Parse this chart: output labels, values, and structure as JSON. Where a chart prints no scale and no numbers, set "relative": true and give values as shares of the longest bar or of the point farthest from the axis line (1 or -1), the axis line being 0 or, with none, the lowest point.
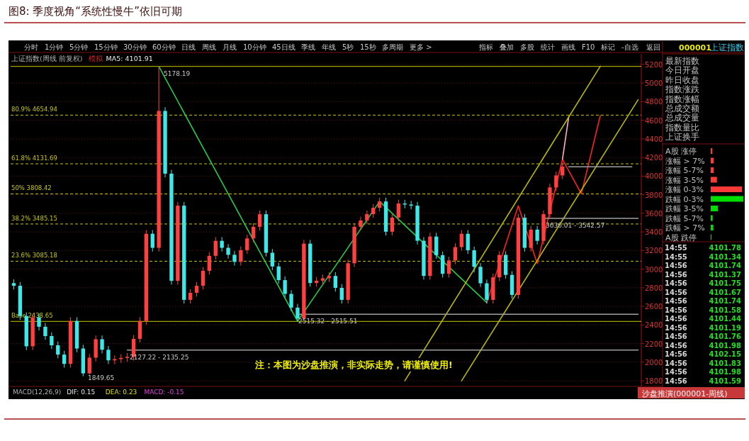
{
  "chart_data": [
    {
      "type": "other",
      "annotations": [
        "分时",
        "1分钟",
        "5分钟",
        "15分钟",
        "30分钟",
        "60分钟",
        "日线",
        "周线",
        "月线",
        "10分钟",
        "45日线",
        "季线",
        "年线",
        "5秒",
        "15秒",
        "多周期",
        "更多 >",
        "指标",
        "叠加",
        "多股",
        "统计",
        "画线",
        "F10",
        "标记",
        "-自选",
        "返回"
      ]
    },
    {
      "type": "candlestick",
      "title": "图8:   季度视角“系统性慢牛”依旧可期",
      "categories": [
        null,
        null,
        null,
        null,
        null,
        null,
        null,
        null,
        null,
        null,
        null,
        null,
        null,
        null,
        null,
        null,
        null,
        null,
        null,
        null,
        null,
        null,
        null,
        null,
        null,
        null,
        null,
        null,
        null,
        null,
        null,
        null,
        null,
        null,
        null,
        null,
        null,
        null,
        null,
        null,
        null,
        null,
        null,
        null,
        null,
        null,
        null,
        null,
        null,
        null,
        null,
        null,
        null,
        null,
        null,
        null,
        null,
        null,
        null,
        null,
        null,
        null,
        null,
        null,
        null,
        null,
        null,
        null,
        null,
        null,
        null,
        null,
        null,
        null,
        null,
        null,
        null,
        null,
        null,
        null,
        null,
        null,
        null,
        null,
        null,
        null,
        null,
        null,
        null,
        null,
        null,
        null,
        null,
        null,
        null,
        null,
        null,
        null,
        null,
        null
      ],
      "ohlc": [
        [
          2850,
          2890,
          2781,
          2821
        ],
        [
          2821,
          2861,
          2456,
          2496
        ],
        [
          2496,
          2536,
          2131,
          2171
        ],
        [
          2171,
          2521,
          2131,
          2481
        ],
        [
          2481,
          2521,
          2341,
          2381
        ],
        [
          2381,
          2421,
          2241,
          2281
        ],
        [
          2281,
          2321,
          2142,
          2182
        ],
        [
          2182,
          2222,
          2042,
          2082
        ],
        [
          2082,
          2122,
          1942,
          1982
        ],
        [
          1982,
          2483,
          1942,
          2443
        ],
        [
          2443,
          2483,
          2107,
          2147
        ],
        [
          2147,
          2187,
          1849.65,
          1880
        ],
        [
          1880,
          2089,
          1870,
          2049
        ],
        [
          2049,
          2287,
          2009,
          2247
        ],
        [
          2247,
          2287,
          2094,
          2134
        ],
        [
          2134,
          2174,
          1980,
          2020
        ],
        [
          2020,
          2073,
          1980,
          2033
        ],
        [
          2033,
          2086,
          1993,
          2046
        ],
        [
          2046,
          2098,
          2006,
          2058
        ],
        [
          2058,
          2291,
          2018,
          2251
        ],
        [
          2251,
          2483,
          2211,
          2443
        ],
        [
          2443,
          3420,
          2403,
          3380
        ],
        [
          3380,
          3420,
          3189,
          3229
        ],
        [
          3229,
          5178.19,
          3189,
          4700
        ],
        [
          4700,
          4740,
          3986,
          4026
        ],
        [
          4026,
          4066,
          2834,
          2874
        ],
        [
          2874,
          3722,
          2834,
          3682
        ],
        [
          3682,
          3722,
          2630,
          2670
        ],
        [
          2670,
          2786,
          2630,
          2746
        ],
        [
          2746,
          2861,
          2706,
          2821
        ],
        [
          2821,
          3022,
          2781,
          2982
        ],
        [
          2982,
          3183,
          2942,
          3143
        ],
        [
          3143,
          3344,
          3103,
          3304
        ],
        [
          3304,
          3344,
          3189,
          3229
        ],
        [
          3229,
          3269,
          3114,
          3154
        ],
        [
          3154,
          3194,
          3038,
          3078
        ],
        [
          3078,
          3244,
          3038,
          3204
        ],
        [
          3204,
          3370,
          3164,
          3330
        ],
        [
          3330,
          3495,
          3290,
          3455
        ],
        [
          3455,
          3630,
          3415,
          3590
        ],
        [
          3590,
          3630,
          3136,
          3176
        ],
        [
          3176,
          3216,
          2989,
          3029
        ],
        [
          3029,
          3069,
          2842,
          2882
        ],
        [
          2882,
          2922,
          2694,
          2734
        ],
        [
          2734,
          2774,
          2547,
          2587
        ],
        [
          2587,
          2627,
          2440,
          2470
        ],
        [
          2470,
          3314,
          2450,
          3274
        ],
        [
          3274,
          3314,
          2811,
          2851
        ],
        [
          2851,
          2916,
          2811,
          2876
        ],
        [
          2876,
          2942,
          2836,
          2902
        ],
        [
          2902,
          2967,
          2862,
          2927
        ],
        [
          2927,
          2967,
          2759,
          2799
        ],
        [
          2799,
          2839,
          2630,
          2670
        ],
        [
          2670,
          3103,
          2630,
          3063
        ],
        [
          3063,
          3495,
          3023,
          3455
        ],
        [
          3455,
          3563,
          3415,
          3523
        ],
        [
          3523,
          3631,
          3483,
          3591
        ],
        [
          3591,
          3699,
          3551,
          3659
        ],
        [
          3659,
          3767,
          3619,
          3727
        ],
        [
          3727,
          3767,
          3362,
          3402
        ],
        [
          3402,
          3594,
          3362,
          3554
        ],
        [
          3554,
          3745,
          3514,
          3705
        ],
        [
          3705,
          3745,
          3654,
          3694
        ],
        [
          3694,
          3734,
          3642,
          3682
        ],
        [
          3682,
          3722,
          3265,
          3305
        ],
        [
          3305,
          3345,
          2887,
          2927
        ],
        [
          2927,
          3390,
          2887,
          3350
        ],
        [
          3350,
          3390,
          3110,
          3150
        ],
        [
          3150,
          3190,
          2910,
          2950
        ],
        [
          2950,
          3133,
          2910,
          3093
        ],
        [
          3093,
          3277,
          3053,
          3237
        ],
        [
          3237,
          3420,
          3197,
          3380
        ],
        [
          3380,
          3420,
          3163,
          3203
        ],
        [
          3203,
          3243,
          2965,
          3025
        ],
        [
          3025,
          3065,
          2808,
          2848
        ],
        [
          2848,
          2888,
          2630,
          2670
        ],
        [
          2670,
          2952,
          2630,
          2912
        ],
        [
          2912,
          3193,
          2872,
          3153
        ],
        [
          3153,
          3193,
          2898,
          2938
        ],
        [
          2938,
          2978,
          2683,
          2723
        ],
        [
          2723,
          3593,
          2683,
          3553
        ],
        [
          3553,
          3593,
          3189,
          3229
        ],
        [
          3229,
          3465,
          3189,
          3425
        ],
        [
          3425,
          3465,
          3264,
          3304
        ],
        [
          3304,
          3631,
          3264,
          3591
        ],
        [
          3591,
          3918,
          3551,
          3878
        ],
        [
          3878,
          4047,
          3838,
          4007
        ],
        [
          4007,
          4142,
          3967,
          4102
        ],
        null,
        null,
        null,
        null,
        null,
        null,
        null,
        null,
        null,
        null,
        null,
        null
      ],
      "series": [
        {
          "type": "line",
          "color": "#22cc44",
          "values": [
            null,
            null,
            null,
            null,
            null,
            null,
            null,
            null,
            null,
            null,
            null,
            null,
            null,
            null,
            null,
            null,
            null,
            null,
            null,
            null,
            null,
            null,
            null,
            5178,
            null,
            null,
            null,
            null,
            null,
            null,
            null,
            null,
            null,
            null,
            null,
            null,
            null,
            null,
            null,
            null,
            null,
            null,
            null,
            null,
            null,
            2440,
            null,
            null,
            null,
            null,
            null,
            null,
            null,
            null,
            null,
            null,
            null,
            null,
            3727,
            null,
            null,
            null,
            null,
            null,
            null,
            null,
            null,
            null,
            null,
            null,
            null,
            null,
            null,
            null,
            null,
            2640,
            null,
            null,
            null,
            null,
            null,
            null,
            null,
            null,
            null,
            null,
            null,
            null,
            null,
            null,
            null,
            null,
            null,
            null,
            null,
            null,
            null,
            null,
            null,
            null
          ]
        },
        {
          "type": "line",
          "color": "#ff2020",
          "values": [
            null,
            null,
            null,
            null,
            null,
            null,
            null,
            null,
            null,
            null,
            null,
            null,
            null,
            null,
            null,
            null,
            null,
            null,
            null,
            null,
            null,
            null,
            null,
            null,
            null,
            null,
            null,
            null,
            null,
            null,
            null,
            null,
            null,
            null,
            null,
            null,
            null,
            null,
            null,
            null,
            null,
            null,
            null,
            null,
            null,
            null,
            null,
            null,
            null,
            null,
            null,
            null,
            null,
            null,
            null,
            null,
            null,
            null,
            null,
            null,
            null,
            null,
            null,
            null,
            null,
            null,
            null,
            null,
            null,
            null,
            null,
            null,
            null,
            null,
            null,
            2640,
            null,
            null,
            null,
            null,
            3680,
            null,
            null,
            3060,
            null,
            null,
            null,
            4180,
            null,
            null,
            3810,
            null,
            null,
            4650,
            null,
            null,
            null,
            null,
            null,
            null
          ]
        },
        {
          "type": "line",
          "color": "#ffb0c8",
          "values": [
            null,
            null,
            null,
            null,
            null,
            null,
            null,
            null,
            null,
            null,
            null,
            null,
            null,
            null,
            null,
            null,
            null,
            null,
            null,
            null,
            null,
            null,
            null,
            null,
            null,
            null,
            null,
            null,
            null,
            null,
            null,
            null,
            null,
            null,
            null,
            null,
            null,
            null,
            null,
            null,
            null,
            null,
            null,
            null,
            null,
            null,
            null,
            null,
            null,
            null,
            null,
            null,
            null,
            null,
            null,
            null,
            null,
            null,
            null,
            null,
            null,
            null,
            null,
            null,
            null,
            null,
            null,
            null,
            null,
            null,
            null,
            null,
            null,
            null,
            null,
            null,
            null,
            null,
            null,
            null,
            null,
            null,
            null,
            null,
            null,
            null,
            null,
            4180,
            4640,
            null,
            null,
            null,
            null,
            null,
            null,
            null,
            null,
            null,
            null,
            null
          ]
        },
        {
          "type": "line",
          "color": "#b8b800",
          "values": [
            null,
            null,
            null,
            null,
            null,
            null,
            null,
            null,
            null,
            null,
            null,
            null,
            null,
            null,
            null,
            null,
            null,
            null,
            null,
            null,
            null,
            null,
            null,
            null,
            null,
            null,
            null,
            null,
            null,
            null,
            null,
            null,
            null,
            null,
            null,
            null,
            null,
            null,
            null,
            null,
            null,
            null,
            null,
            null,
            null,
            null,
            null,
            null,
            null,
            null,
            null,
            null,
            null,
            null,
            null,
            null,
            null,
            null,
            null,
            null,
            null,
            null,
            1800,
            null,
            null,
            null,
            null,
            null,
            null,
            null,
            null,
            null,
            null,
            null,
            null,
            null,
            null,
            null,
            null,
            null,
            null,
            null,
            null,
            null,
            null,
            null,
            null,
            null,
            null,
            null,
            null,
            null,
            null,
            5180,
            null,
            null,
            null,
            null,
            null,
            null
          ]
        },
        {
          "type": "line",
          "color": "#b8b800",
          "values": [
            null,
            null,
            null,
            null,
            null,
            null,
            null,
            null,
            null,
            null,
            null,
            null,
            null,
            null,
            null,
            null,
            null,
            null,
            null,
            null,
            null,
            null,
            null,
            null,
            null,
            null,
            null,
            null,
            null,
            null,
            null,
            null,
            null,
            null,
            null,
            null,
            null,
            null,
            null,
            null,
            null,
            null,
            null,
            null,
            null,
            null,
            null,
            null,
            null,
            null,
            null,
            null,
            null,
            null,
            null,
            null,
            null,
            null,
            null,
            null,
            null,
            null,
            null,
            null,
            null,
            null,
            null,
            null,
            null,
            null,
            null,
            1800,
            null,
            null,
            null,
            null,
            null,
            null,
            null,
            null,
            null,
            null,
            null,
            null,
            null,
            null,
            null,
            null,
            null,
            null,
            null,
            null,
            null,
            null,
            null,
            null,
            null,
            null,
            null,
            4820
          ]
        },
        {
          "type": "line",
          "color": "#a0a0a0",
          "values": [
            null,
            null,
            null,
            null,
            null,
            null,
            null,
            null,
            null,
            null,
            null,
            null,
            null,
            null,
            null,
            null,
            null,
            null,
            2130,
            null,
            null,
            null,
            null,
            null,
            null,
            null,
            null,
            null,
            null,
            null,
            null,
            null,
            null,
            null,
            null,
            null,
            null,
            null,
            null,
            null,
            null,
            null,
            null,
            null,
            null,
            null,
            null,
            null,
            null,
            null,
            null,
            null,
            null,
            null,
            null,
            null,
            null,
            null,
            null,
            null,
            null,
            null,
            null,
            null,
            null,
            null,
            null,
            null,
            null,
            null,
            null,
            null,
            null,
            null,
            null,
            null,
            null,
            null,
            null,
            null,
            null,
            null,
            null,
            null,
            null,
            null,
            null,
            null,
            null,
            null,
            null,
            null,
            null,
            null,
            null,
            null,
            null,
            null,
            null,
            2130
          ]
        },
        {
          "type": "line",
          "color": "#a0a0a0",
          "values": [
            null,
            null,
            null,
            null,
            null,
            null,
            null,
            null,
            null,
            null,
            null,
            null,
            null,
            null,
            null,
            null,
            null,
            null,
            null,
            null,
            null,
            null,
            null,
            null,
            null,
            null,
            null,
            null,
            null,
            null,
            null,
            null,
            null,
            null,
            null,
            null,
            null,
            null,
            null,
            null,
            null,
            null,
            null,
            null,
            null,
            2515,
            null,
            null,
            null,
            null,
            null,
            null,
            null,
            null,
            null,
            null,
            null,
            null,
            null,
            null,
            null,
            null,
            null,
            null,
            null,
            null,
            null,
            null,
            null,
            null,
            null,
            null,
            null,
            null,
            null,
            null,
            null,
            null,
            null,
            null,
            null,
            null,
            null,
            null,
            null,
            null,
            null,
            null,
            null,
            null,
            null,
            null,
            null,
            null,
            null,
            null,
            null,
            null,
            null,
            2515
          ]
        },
        {
          "type": "line",
          "color": "#a0a0a0",
          "values": [
            null,
            null,
            null,
            null,
            null,
            null,
            null,
            null,
            null,
            null,
            null,
            null,
            null,
            null,
            null,
            null,
            null,
            null,
            null,
            null,
            null,
            null,
            null,
            null,
            null,
            null,
            null,
            null,
            null,
            null,
            null,
            null,
            null,
            null,
            null,
            null,
            null,
            null,
            null,
            null,
            null,
            null,
            null,
            null,
            null,
            null,
            null,
            null,
            null,
            null,
            null,
            null,
            null,
            null,
            null,
            null,
            null,
            null,
            null,
            null,
            null,
            null,
            null,
            null,
            null,
            null,
            null,
            null,
            null,
            null,
            null,
            null,
            null,
            null,
            null,
            null,
            null,
            null,
            null,
            null,
            null,
            null,
            null,
            null,
            3545,
            null,
            null,
            null,
            null,
            null,
            null,
            null,
            null,
            null,
            null,
            null,
            null,
            null,
            null,
            3545
          ]
        },
        {
          "type": "line",
          "color": "#a0a0a0",
          "values": [
            null,
            null,
            null,
            null,
            null,
            null,
            null,
            null,
            null,
            null,
            null,
            null,
            null,
            null,
            null,
            null,
            null,
            null,
            null,
            null,
            null,
            null,
            null,
            null,
            null,
            null,
            null,
            null,
            null,
            null,
            null,
            null,
            null,
            null,
            null,
            null,
            null,
            null,
            null,
            null,
            null,
            null,
            null,
            null,
            null,
            null,
            null,
            null,
            null,
            null,
            null,
            null,
            null,
            null,
            null,
            null,
            null,
            null,
            null,
            null,
            null,
            null,
            null,
            null,
            null,
            null,
            null,
            null,
            null,
            null,
            null,
            null,
            null,
            null,
            null,
            null,
            null,
            null,
            null,
            null,
            null,
            null,
            null,
            null,
            null,
            null,
            null,
            null,
            4100,
            null,
            null,
            null,
            null,
            null,
            null,
            null,
            null,
            null,
            4100,
            null
          ]
        }
      ],
      "ref_lines": [
        {
          "axis": "y",
          "value": 5178.19,
          "label": null,
          "color": "#c8c800",
          "line_style": "solid"
        },
        {
          "axis": "y",
          "value": 4654.94,
          "label": "80.9% 4654.94",
          "color": "#c8c800",
          "line_style": "dashed"
        },
        {
          "axis": "y",
          "value": 4131.69,
          "label": "61.8% 4131.69",
          "color": "#c8c800",
          "line_style": "dashed"
        },
        {
          "axis": "y",
          "value": 3808.42,
          "label": "50% 3808.42",
          "color": "#c8c800",
          "line_style": "dashed"
        },
        {
          "axis": "y",
          "value": 3485.15,
          "label": "38.2% 3485.15",
          "color": "#c8c800",
          "line_style": "dashed"
        },
        {
          "axis": "y",
          "value": 3085.18,
          "label": "23.6% 3085.18",
          "color": "#c8c800",
          "line_style": "dashed"
        },
        {
          "axis": "y",
          "value": 2438.65,
          "label": "Base 2438.65",
          "color": "#c8c800",
          "line_style": "solid"
        }
      ],
      "annotations": [
        "上证指数(周线 前复权)",
        "模拟",
        "MA5: 4101.91",
        "注：本图为沙盘推演，非实际走势，请谨慎使用!",
        "MACD(12,26,9)",
        "DIF: 0.15",
        "DEA: 0.23",
        "MACD: -0.15",
        "沙盘推演(000001-周线)",
        {
          "text": "5178.19",
          "y": 5178.19
        },
        "1849.65",
        {
          "text": "2127.22 - 2135.25",
          "y": 2130
        },
        {
          "text": "2515.32 - 2515.51",
          "y": 2515
        },
        {
          "text": "3636.01 - 3542.57",
          "y": 3545
        }
      ],
      "ylim": [
        1740,
        5290
      ],
      "yticks": [
        1800,
        2000,
        2200,
        2400,
        2600,
        2800,
        3000,
        3200,
        3400,
        3600,
        3800,
        4000,
        4200,
        4400,
        4600,
        4800,
        5000,
        5200
      ],
      "grid": "y",
      "tick_labels": "y"
    },
    {
      "type": "other",
      "annotations": [
        "000001",
        "上证指数",
        "最新指数",
        "今日开盘",
        "昨日收盘",
        "指数涨跌",
        "指数涨幅",
        "总成交额",
        "总成交量",
        "指数量比",
        "上证换手"
      ]
    },
    {
      "type": "bar",
      "orientation": "horizontal",
      "relative": true,
      "categories": [
        "A股 涨停",
        "涨幅 > 7%",
        "涨幅 5-7%",
        "涨幅 3-5%",
        "涨幅 0-3%",
        "跌幅 0-3%",
        "跌幅 3-5%",
        "跌幅 5-7%",
        "跌幅 > 7%",
        "A股 跌停"
      ],
      "values": [
        0.05,
        0.09,
        0.09,
        0.19,
        0.96,
        1,
        0.22,
        0.06,
        0.08,
        0.02
      ],
      "colors": [
        "#ff3838",
        "#ff3838",
        "#ff3838",
        "#ff3838",
        "#ff3838",
        "#00dd00",
        "#00dd00",
        "#00dd00",
        "#00dd00",
        "#00dd00"
      ]
    },
    {
      "type": "other",
      "categories": [
        "14:55",
        "14:55",
        "14:56",
        "14:56",
        "14:56",
        "14:56",
        "14:56",
        "14:56",
        "14:56",
        "14:56",
        "14:56",
        "14:56",
        "14:56",
        "14:56",
        "14:56",
        "14:56"
      ],
      "values": [
        4101.78,
        4101.34,
        4101.74,
        4101.37,
        4101.75,
        4101.67,
        4101.74,
        4101.58,
        4101.44,
        4101.19,
        4101.76,
        4101.98,
        4102.15,
        4101.83,
        4101.98,
        4101.59
      ],
      "color": "#22dd22",
      "data_labels": true
    }
  ]
}
